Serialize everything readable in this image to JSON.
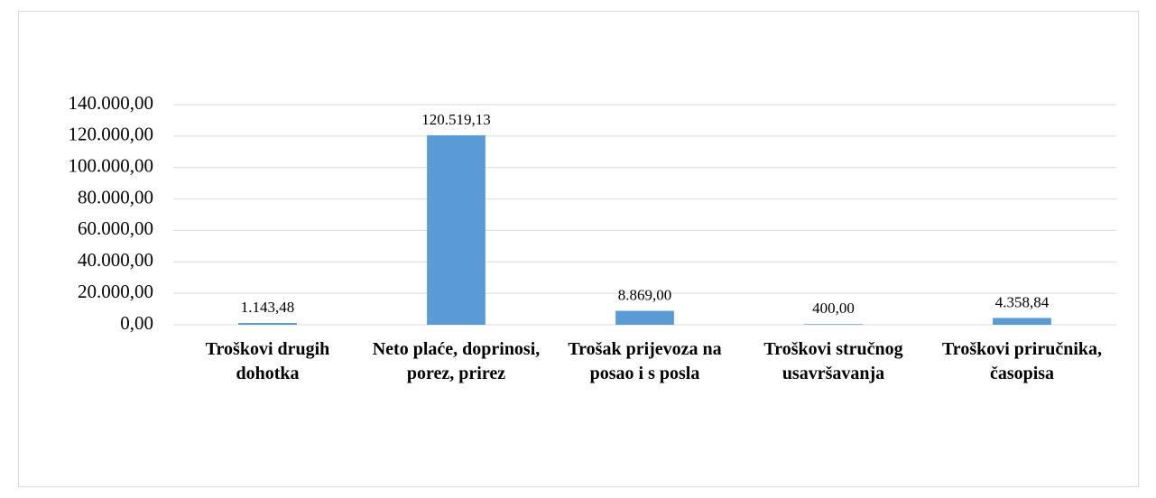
{
  "chart_data": {
    "type": "bar",
    "categories": [
      "Troškovi drugih dohotka",
      "Neto plaće, doprinosi, porez, prirez",
      "Trošak prijevoza na posao i s posla",
      "Troškovi stručnog usavršavanja",
      "Troškovi priručnika, časopisa"
    ],
    "values": [
      1143.48,
      120519.13,
      8869.0,
      400.0,
      4358.84
    ],
    "value_labels": [
      "1.143,48",
      "120.519,13",
      "8.869,00",
      "400,00",
      "4.358,84"
    ],
    "color": "#5b9bd5",
    "ylim": [
      0,
      140000
    ],
    "yticks": [
      {
        "value": 0,
        "label": "0,00"
      },
      {
        "value": 20000,
        "label": "20.000,00"
      },
      {
        "value": 40000,
        "label": "40.000,00"
      },
      {
        "value": 60000,
        "label": "60.000,00"
      },
      {
        "value": 80000,
        "label": "80.000,00"
      },
      {
        "value": 100000,
        "label": "100.000,00"
      },
      {
        "value": 120000,
        "label": "120.000,00"
      },
      {
        "value": 140000,
        "label": "140.000,00"
      }
    ],
    "grid": true
  }
}
